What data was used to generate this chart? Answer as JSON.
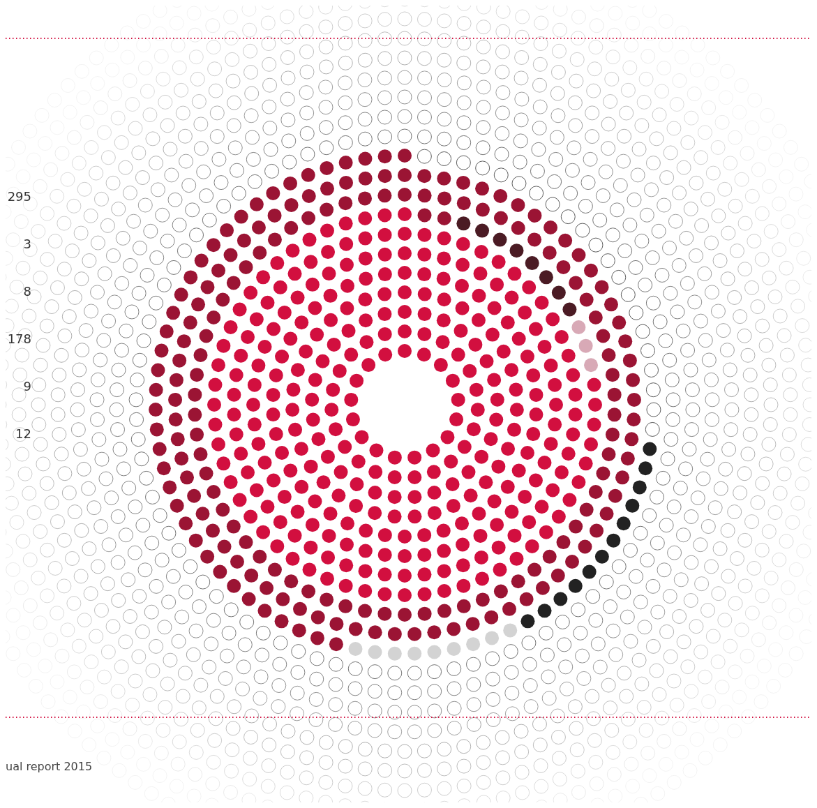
{
  "chart_data": {
    "type": "other",
    "categories": [
      null,
      null,
      null,
      null,
      null,
      null
    ],
    "values": [
      295,
      3,
      8,
      178,
      9,
      12
    ],
    "colors": [
      "#d20f3f",
      "#d8a9b6",
      "#4b1b24",
      "#9b1434",
      "#d3d3d3",
      "#222222"
    ],
    "data_labels": true,
    "annotations": [
      "ual report 2015"
    ]
  }
}
